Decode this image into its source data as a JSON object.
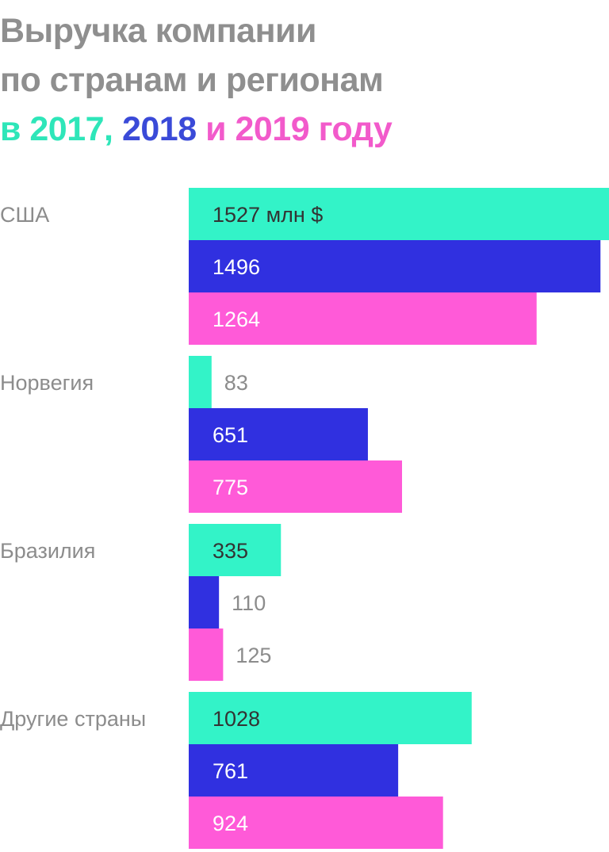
{
  "title": {
    "line1": "Выручка компании",
    "line2": "по странам и регионам",
    "line3_prefix": "в",
    "year_a": "2017,",
    "year_b": "2018",
    "conj": "и",
    "year_c": "2019 году"
  },
  "colors": {
    "2017": "#33f3c8",
    "2018": "#3030e0",
    "2019": "#ff5ad8",
    "label_text": "#8c8c8c",
    "bar_text": "#333333"
  },
  "chart_data": {
    "type": "bar",
    "orientation": "horizontal",
    "categories": [
      "США",
      "Норвегия",
      "Бразилия",
      "Другие страны"
    ],
    "unit_label": "млн $",
    "series": [
      {
        "key": "2017",
        "values": [
          1527,
          83,
          335,
          1028
        ]
      },
      {
        "key": "2018",
        "values": [
          1496,
          651,
          110,
          761
        ]
      },
      {
        "key": "2019",
        "values": [
          1264,
          775,
          125,
          924
        ]
      }
    ],
    "value_labels": [
      [
        "1527 млн $",
        "1496",
        "1264"
      ],
      [
        "83",
        "651",
        "775"
      ],
      [
        "335",
        "110",
        "125"
      ],
      [
        "1028",
        "761",
        "924"
      ]
    ]
  }
}
